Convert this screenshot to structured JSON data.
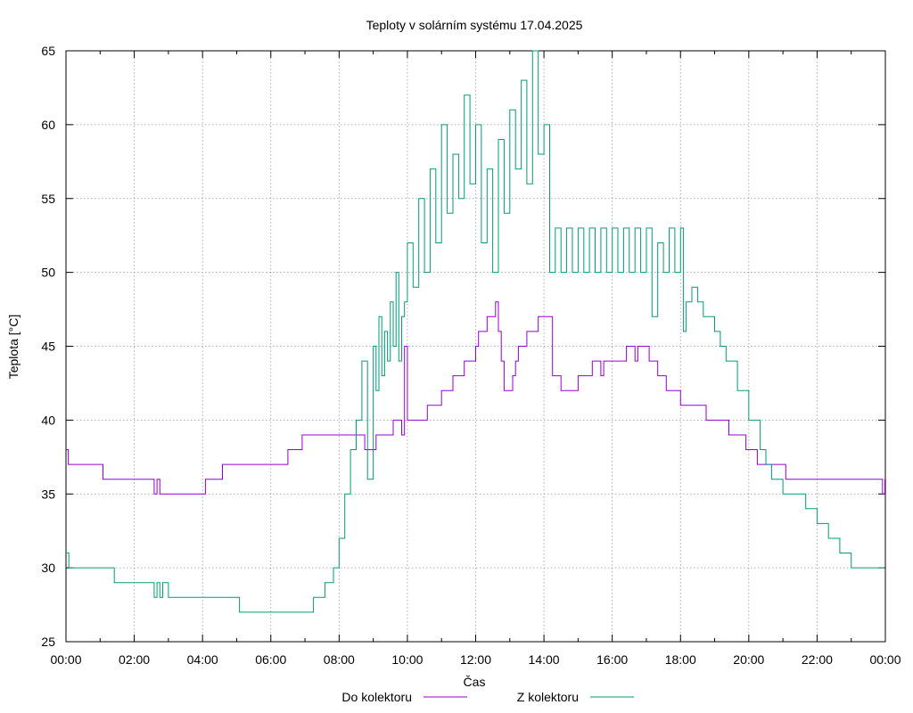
{
  "chart_data": {
    "type": "line",
    "title": "Teploty v solárním systému 17.04.2025",
    "xlabel": "Čas",
    "ylabel": "Teplota [°C]",
    "ylim": [
      25,
      65
    ],
    "xlim": [
      "00:00",
      "24:00"
    ],
    "yticks": [
      25,
      30,
      35,
      40,
      45,
      50,
      55,
      60,
      65
    ],
    "xticks": [
      "00:00",
      "02:00",
      "04:00",
      "06:00",
      "08:00",
      "10:00",
      "12:00",
      "14:00",
      "16:00",
      "18:00",
      "20:00",
      "22:00",
      "00:00"
    ],
    "grid": true,
    "legend_position": "bottom",
    "series": [
      {
        "name": "Do kolektoru",
        "color": "#9400d3",
        "x": [
          "00:00",
          "00:04",
          "00:10",
          "01:00",
          "01:05",
          "02:30",
          "02:35",
          "02:40",
          "02:45",
          "04:00",
          "04:05",
          "04:30",
          "04:35",
          "05:00",
          "05:05",
          "06:30",
          "06:35",
          "06:50",
          "06:55",
          "08:40",
          "08:45",
          "09:00",
          "09:05",
          "09:30",
          "09:35",
          "09:50",
          "09:55",
          "10:00",
          "10:05",
          "10:30",
          "10:35",
          "11:00",
          "11:05",
          "11:20",
          "11:25",
          "11:40",
          "11:45",
          "12:00",
          "12:05",
          "12:20",
          "12:25",
          "12:35",
          "12:40",
          "12:45",
          "12:50",
          "13:00",
          "13:05",
          "13:10",
          "13:15",
          "13:30",
          "13:35",
          "13:50",
          "13:55",
          "14:10",
          "14:15",
          "14:30",
          "14:35",
          "15:00",
          "15:05",
          "15:20",
          "15:25",
          "15:40",
          "15:45",
          "16:00",
          "16:05",
          "16:20",
          "16:25",
          "16:40",
          "16:45",
          "17:00",
          "17:05",
          "17:15",
          "17:20",
          "17:30",
          "17:35",
          "18:00",
          "18:05",
          "18:40",
          "18:45",
          "19:20",
          "19:25",
          "19:50",
          "19:55",
          "20:10",
          "20:15",
          "20:30",
          "20:35",
          "21:00",
          "21:05",
          "22:20",
          "22:25",
          "23:50",
          "23:55",
          "23:59"
        ],
        "values": [
          38,
          37,
          37,
          37,
          36,
          36,
          35,
          36,
          35,
          35,
          36,
          36,
          37,
          37,
          37,
          38,
          38,
          38,
          39,
          39,
          38,
          38,
          39,
          39,
          40,
          39,
          45,
          40,
          40,
          40,
          41,
          42,
          42,
          43,
          43,
          44,
          44,
          45,
          46,
          47,
          47,
          48,
          46,
          44,
          42,
          42,
          43,
          44,
          45,
          46,
          46,
          47,
          47,
          47,
          43,
          42,
          42,
          43,
          43,
          43,
          44,
          43,
          44,
          44,
          44,
          44,
          45,
          44,
          45,
          45,
          44,
          44,
          43,
          43,
          42,
          41,
          41,
          41,
          40,
          40,
          39,
          39,
          38,
          38,
          37,
          37,
          37,
          37,
          36,
          36,
          36,
          36,
          35,
          36
        ]
      },
      {
        "name": "Z kolektoru",
        "color": "#009e73",
        "x": [
          "00:00",
          "00:05",
          "00:10",
          "01:20",
          "01:25",
          "02:30",
          "02:35",
          "02:40",
          "02:45",
          "02:50",
          "03:00",
          "03:05",
          "03:10",
          "04:40",
          "04:45",
          "05:00",
          "05:05",
          "07:10",
          "07:15",
          "07:30",
          "07:35",
          "07:45",
          "07:50",
          "08:00",
          "08:10",
          "08:20",
          "08:30",
          "08:40",
          "08:50",
          "09:00",
          "09:05",
          "09:10",
          "09:15",
          "09:20",
          "09:25",
          "09:30",
          "09:35",
          "09:40",
          "09:45",
          "09:50",
          "09:55",
          "10:00",
          "10:10",
          "10:20",
          "10:30",
          "10:40",
          "10:50",
          "11:00",
          "11:10",
          "11:20",
          "11:30",
          "11:40",
          "11:50",
          "12:00",
          "12:10",
          "12:20",
          "12:30",
          "12:40",
          "12:50",
          "13:00",
          "13:10",
          "13:20",
          "13:30",
          "13:40",
          "13:50",
          "14:00",
          "14:10",
          "14:20",
          "14:30",
          "14:40",
          "14:50",
          "15:00",
          "15:10",
          "15:20",
          "15:30",
          "15:40",
          "15:50",
          "16:00",
          "16:10",
          "16:20",
          "16:30",
          "16:40",
          "16:50",
          "17:00",
          "17:10",
          "17:20",
          "17:30",
          "17:40",
          "17:50",
          "18:00",
          "18:05",
          "18:10",
          "18:20",
          "18:30",
          "18:40",
          "19:00",
          "19:10",
          "19:20",
          "19:40",
          "20:00",
          "20:20",
          "20:30",
          "20:40",
          "21:00",
          "21:20",
          "21:40",
          "22:00",
          "22:20",
          "22:40",
          "23:00",
          "23:20",
          "23:59"
        ],
        "values": [
          31,
          30,
          30,
          30,
          29,
          29,
          28,
          29,
          28,
          29,
          28,
          28,
          28,
          28,
          28,
          28,
          27,
          27,
          28,
          28,
          29,
          29,
          30,
          32,
          35,
          38,
          40,
          44,
          36,
          45,
          42,
          47,
          43,
          46,
          44,
          48,
          45,
          50,
          44,
          47,
          48,
          52,
          49,
          55,
          50,
          57,
          52,
          60,
          54,
          58,
          55,
          62,
          56,
          60,
          52,
          57,
          50,
          59,
          54,
          61,
          57,
          63,
          56,
          65,
          58,
          60,
          50,
          53,
          50,
          53,
          50,
          53,
          50,
          53,
          50,
          53,
          50,
          53,
          50,
          53,
          50,
          53,
          50,
          53,
          47,
          52,
          50,
          53,
          50,
          53,
          46,
          48,
          49,
          48,
          47,
          46,
          45,
          44,
          42,
          40,
          38,
          37,
          36,
          35,
          35,
          34,
          33,
          32,
          31,
          30,
          30,
          30
        ]
      }
    ]
  }
}
